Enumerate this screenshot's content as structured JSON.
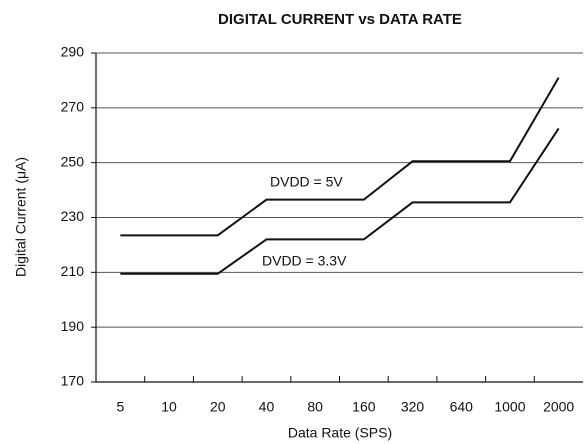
{
  "chart_data": {
    "type": "line",
    "title": "DIGITAL CURRENT vs DATA RATE",
    "x_label": "Data Rate (SPS)",
    "y_label": "Digital Current (μA)",
    "categories": [
      "5",
      "10",
      "20",
      "40",
      "80",
      "160",
      "320",
      "640",
      "1000",
      "2000"
    ],
    "series": [
      {
        "name": "DVDD = 5V",
        "color": "#111111",
        "values": [
          223.5,
          223.5,
          223.5,
          236.5,
          236.5,
          236.5,
          250.5,
          250.5,
          250.5,
          281
        ]
      },
      {
        "name": "DVDD = 3.3V",
        "color": "#111111",
        "values": [
          209.5,
          209.5,
          209.5,
          222,
          222,
          222,
          235.5,
          235.5,
          235.5,
          262.5
        ]
      }
    ],
    "ylim": [
      170,
      290
    ],
    "yticks": [
      170,
      190,
      210,
      230,
      250,
      270,
      290
    ],
    "grid": true
  }
}
